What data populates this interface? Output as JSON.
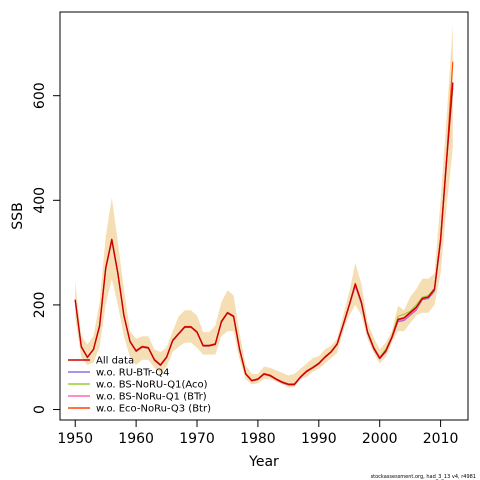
{
  "chart_data": {
    "type": "line",
    "xlabel": "Year",
    "ylabel": "SSB",
    "xlim": [
      1947.5,
      2014.5
    ],
    "ylim": [
      -20,
      760
    ],
    "x_ticks": [
      1950,
      1960,
      1970,
      1980,
      1990,
      2000,
      2010
    ],
    "y_ticks": [
      0,
      200,
      400,
      600
    ],
    "grid": false,
    "legend_position": "bottom-left",
    "footnote": "stockassessment.org, had_3_13 v4, r4981",
    "x": [
      1950,
      1951,
      1952,
      1953,
      1954,
      1955,
      1956,
      1957,
      1958,
      1959,
      1960,
      1961,
      1962,
      1963,
      1964,
      1965,
      1966,
      1967,
      1968,
      1969,
      1970,
      1971,
      1972,
      1973,
      1974,
      1975,
      1976,
      1977,
      1978,
      1979,
      1980,
      1981,
      1982,
      1983,
      1984,
      1985,
      1986,
      1987,
      1988,
      1989,
      1990,
      1991,
      1992,
      1993,
      1994,
      1995,
      1996,
      1997,
      1998,
      1999,
      2000,
      2001,
      2002,
      2003,
      2004,
      2005,
      2006,
      2007,
      2008,
      2009,
      2010,
      2011,
      2012
    ],
    "confidence_band": {
      "color": "#f5deb3",
      "lower": [
        175,
        100,
        85,
        90,
        120,
        200,
        250,
        200,
        140,
        100,
        85,
        95,
        95,
        80,
        70,
        82,
        110,
        120,
        128,
        128,
        118,
        105,
        105,
        105,
        140,
        150,
        150,
        95,
        58,
        48,
        50,
        58,
        58,
        53,
        48,
        42,
        43,
        58,
        62,
        72,
        78,
        88,
        98,
        108,
        150,
        180,
        200,
        180,
        135,
        108,
        88,
        100,
        128,
        150,
        150,
        165,
        180,
        185,
        185,
        200,
        260,
        390,
        500
      ],
      "upper": [
        245,
        140,
        125,
        140,
        205,
        330,
        405,
        320,
        230,
        150,
        135,
        140,
        140,
        115,
        110,
        118,
        150,
        178,
        190,
        190,
        180,
        148,
        148,
        160,
        205,
        228,
        218,
        145,
        85,
        68,
        68,
        82,
        80,
        75,
        70,
        65,
        68,
        78,
        88,
        98,
        102,
        115,
        122,
        135,
        180,
        225,
        280,
        240,
        168,
        138,
        115,
        128,
        150,
        198,
        190,
        215,
        230,
        250,
        250,
        260,
        400,
        560,
        735
      ]
    },
    "series": [
      {
        "name": "All data",
        "color": "#cc0000",
        "values": [
          210,
          120,
          100,
          115,
          160,
          270,
          325,
          260,
          180,
          130,
          112,
          120,
          118,
          95,
          85,
          100,
          132,
          145,
          158,
          158,
          148,
          122,
          122,
          125,
          168,
          185,
          178,
          115,
          68,
          55,
          58,
          68,
          65,
          58,
          52,
          48,
          48,
          62,
          73,
          80,
          88,
          100,
          110,
          125,
          162,
          200,
          240,
          205,
          148,
          118,
          98,
          112,
          138,
          172,
          175,
          185,
          195,
          212,
          215,
          230,
          325,
          480,
          625
        ]
      },
      {
        "name": "w.o. RU-BTr-Q4",
        "color": "#9370db",
        "values": [
          208,
          119,
          99,
          115,
          158,
          268,
          322,
          258,
          179,
          129,
          111,
          119,
          117,
          94,
          84,
          99,
          131,
          144,
          157,
          157,
          147,
          121,
          121,
          124,
          167,
          184,
          177,
          114,
          68,
          55,
          57,
          67,
          64,
          57,
          51,
          47,
          47,
          61,
          72,
          79,
          87,
          99,
          109,
          124,
          160,
          198,
          236,
          202,
          146,
          116,
          97,
          110,
          136,
          168,
          170,
          180,
          190,
          210,
          212,
          226,
          320,
          475,
          615
        ]
      },
      {
        "name": "w.o. BS-NoRU-Q1(Aco)",
        "color": "#9acd32",
        "values": [
          209,
          120,
          100,
          115,
          160,
          270,
          324,
          260,
          180,
          130,
          112,
          120,
          118,
          95,
          85,
          100,
          132,
          145,
          158,
          158,
          148,
          122,
          122,
          125,
          168,
          185,
          178,
          115,
          68,
          55,
          58,
          68,
          65,
          58,
          52,
          48,
          48,
          62,
          73,
          80,
          88,
          100,
          110,
          125,
          162,
          200,
          240,
          206,
          150,
          120,
          100,
          115,
          140,
          178,
          182,
          188,
          200,
          215,
          218,
          232,
          326,
          480,
          620
        ]
      },
      {
        "name": "w.o. BS-NoRu-Q1 (BTr)",
        "color": "#ff69b4",
        "values": [
          210,
          120,
          100,
          115,
          160,
          270,
          325,
          260,
          180,
          130,
          112,
          120,
          118,
          95,
          85,
          100,
          132,
          145,
          158,
          158,
          148,
          122,
          122,
          125,
          168,
          185,
          178,
          115,
          68,
          55,
          58,
          68,
          65,
          58,
          52,
          48,
          48,
          62,
          73,
          80,
          88,
          100,
          110,
          125,
          162,
          200,
          238,
          204,
          148,
          118,
          100,
          112,
          138,
          170,
          172,
          182,
          192,
          212,
          215,
          230,
          325,
          480,
          625
        ]
      },
      {
        "name": "w.o. Eco-NoRu-Q3 (Btr)",
        "color": "#ff4500",
        "values": [
          210,
          121,
          100,
          116,
          161,
          271,
          326,
          261,
          181,
          131,
          113,
          121,
          119,
          96,
          86,
          101,
          133,
          146,
          159,
          159,
          149,
          123,
          123,
          126,
          169,
          186,
          179,
          116,
          69,
          56,
          59,
          69,
          66,
          59,
          53,
          49,
          49,
          63,
          74,
          81,
          89,
          101,
          111,
          126,
          163,
          201,
          241,
          206,
          149,
          119,
          99,
          113,
          139,
          173,
          176,
          186,
          196,
          213,
          216,
          231,
          327,
          482,
          665
        ]
      }
    ]
  }
}
